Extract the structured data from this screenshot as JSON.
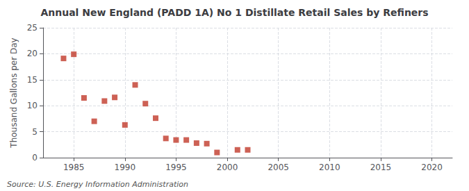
{
  "chart_data": {
    "type": "scatter",
    "title": "Annual New England (PADD 1A) No 1 Distillate Retail Sales by Refiners",
    "ylabel": "Thousand Gallons per Day",
    "annotations": [
      "Source: U.S. Energy Information Administration"
    ],
    "x": [
      1984,
      1985,
      1986,
      1987,
      1988,
      1989,
      1990,
      1991,
      1992,
      1993,
      1994,
      1995,
      1996,
      1997,
      1998,
      1999,
      2001,
      2002
    ],
    "values": [
      19.1,
      19.9,
      11.5,
      7.0,
      10.9,
      11.6,
      6.3,
      14.0,
      10.4,
      7.6,
      3.7,
      3.4,
      3.4,
      2.8,
      2.7,
      1.0,
      1.5,
      1.5
    ],
    "color": "#c0392b",
    "marker": "square",
    "xlim": [
      1982,
      2022
    ],
    "xticks": [
      1985,
      1990,
      1995,
      2000,
      2005,
      2010,
      2015,
      2020
    ],
    "ylim": [
      0,
      25
    ],
    "yticks": [
      0,
      5,
      10,
      15,
      20,
      25
    ],
    "grid": true
  }
}
